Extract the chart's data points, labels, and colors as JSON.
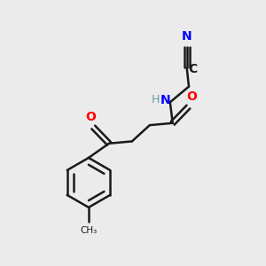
{
  "bg_color": "#ebebeb",
  "bond_color": "#1a1a1a",
  "bond_width": 1.8,
  "atom_colors": {
    "N": "#0000ff",
    "O": "#ff0000",
    "C": "#1a1a1a",
    "H": "#5f9ea0"
  },
  "figsize": [
    3.0,
    3.0
  ],
  "dpi": 100
}
